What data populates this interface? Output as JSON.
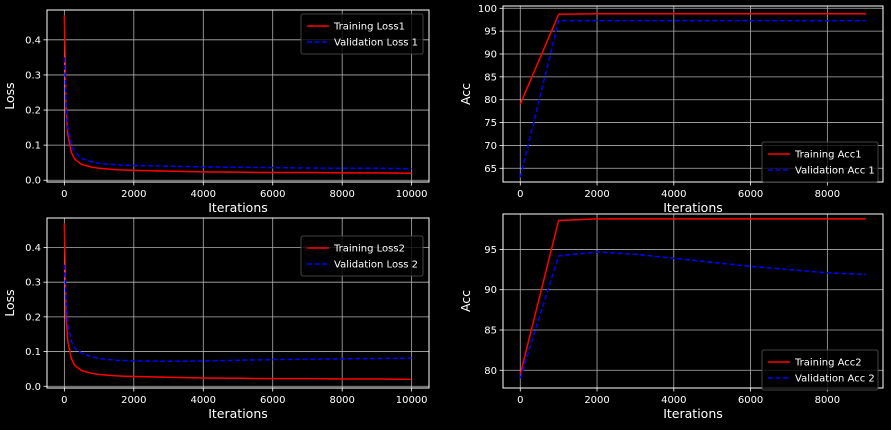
{
  "figure": {
    "background": "#000000",
    "text_color": "#ffffff",
    "grid_color": "#b0b0b0"
  },
  "chart_data": [
    {
      "type": "line",
      "xlabel": "Iterations",
      "ylabel": "Loss",
      "xlim": [
        -500,
        10500
      ],
      "ylim": [
        -0.005,
        0.485
      ],
      "xticks": [
        0,
        2000,
        4000,
        6000,
        8000,
        10000
      ],
      "yticks": [
        0.0,
        0.1,
        0.2,
        0.3,
        0.4
      ],
      "grid": true,
      "legend_position": "top-right",
      "series": [
        {
          "name": "Training Loss1",
          "color": "#ff0000",
          "style": "solid",
          "x": [
            0,
            50,
            100,
            200,
            300,
            500,
            800,
            1000,
            1500,
            2000,
            3000,
            4000,
            5000,
            6000,
            7000,
            8000,
            9000,
            10000
          ],
          "y": [
            0.47,
            0.2,
            0.13,
            0.08,
            0.06,
            0.045,
            0.037,
            0.034,
            0.03,
            0.028,
            0.026,
            0.024,
            0.023,
            0.022,
            0.022,
            0.021,
            0.021,
            0.02
          ]
        },
        {
          "name": "Validation Loss 1",
          "color": "#0000ff",
          "style": "dashed",
          "x": [
            0,
            50,
            100,
            200,
            300,
            500,
            800,
            1000,
            1500,
            2000,
            3000,
            4000,
            5000,
            6000,
            7000,
            8000,
            9000,
            10000
          ],
          "y": [
            0.35,
            0.22,
            0.15,
            0.1,
            0.08,
            0.062,
            0.052,
            0.048,
            0.044,
            0.042,
            0.04,
            0.038,
            0.037,
            0.036,
            0.035,
            0.034,
            0.034,
            0.033
          ]
        }
      ]
    },
    {
      "type": "line",
      "xlabel": "Iterations",
      "ylabel": "Acc",
      "xlim": [
        -450,
        9450
      ],
      "ylim": [
        62,
        100.5
      ],
      "xticks": [
        0,
        2000,
        4000,
        6000,
        8000
      ],
      "yticks": [
        65,
        70,
        75,
        80,
        85,
        90,
        95,
        100
      ],
      "grid": true,
      "legend_position": "bottom-right",
      "series": [
        {
          "name": "Training Acc1",
          "color": "#ff0000",
          "style": "solid",
          "x": [
            0,
            1000,
            2000,
            3000,
            4000,
            5000,
            6000,
            7000,
            8000,
            9000
          ],
          "y": [
            79,
            98.7,
            98.8,
            98.8,
            98.8,
            98.8,
            98.8,
            98.8,
            98.8,
            98.8
          ]
        },
        {
          "name": "Validation Acc 1",
          "color": "#0000ff",
          "style": "dashed",
          "x": [
            0,
            1000,
            2000,
            3000,
            4000,
            5000,
            6000,
            7000,
            8000,
            9000
          ],
          "y": [
            63,
            97.3,
            97.3,
            97.3,
            97.3,
            97.3,
            97.3,
            97.3,
            97.3,
            97.3
          ]
        }
      ]
    },
    {
      "type": "line",
      "xlabel": "Iterations",
      "ylabel": "Loss",
      "xlim": [
        -500,
        10500
      ],
      "ylim": [
        -0.005,
        0.485
      ],
      "xticks": [
        0,
        2000,
        4000,
        6000,
        8000,
        10000
      ],
      "yticks": [
        0.0,
        0.1,
        0.2,
        0.3,
        0.4
      ],
      "grid": true,
      "legend_position": "top-right",
      "series": [
        {
          "name": "Training Loss2",
          "color": "#ff0000",
          "style": "solid",
          "x": [
            0,
            50,
            100,
            200,
            300,
            500,
            800,
            1000,
            1500,
            2000,
            3000,
            4000,
            5000,
            6000,
            7000,
            8000,
            9000,
            10000
          ],
          "y": [
            0.47,
            0.2,
            0.13,
            0.08,
            0.06,
            0.045,
            0.037,
            0.034,
            0.03,
            0.028,
            0.026,
            0.024,
            0.023,
            0.022,
            0.022,
            0.021,
            0.021,
            0.02
          ]
        },
        {
          "name": "Validation Loss 2",
          "color": "#0000ff",
          "style": "dashed",
          "x": [
            0,
            50,
            100,
            200,
            300,
            500,
            800,
            1000,
            1500,
            2000,
            3000,
            4000,
            5000,
            6000,
            7000,
            8000,
            9000,
            10000
          ],
          "y": [
            0.35,
            0.25,
            0.18,
            0.13,
            0.11,
            0.095,
            0.085,
            0.08,
            0.075,
            0.073,
            0.072,
            0.073,
            0.075,
            0.077,
            0.078,
            0.079,
            0.08,
            0.081
          ]
        }
      ]
    },
    {
      "type": "line",
      "xlabel": "Iterations",
      "ylabel": "Acc",
      "xlim": [
        -450,
        9450
      ],
      "ylim": [
        77.8,
        99.4
      ],
      "xticks": [
        0,
        2000,
        4000,
        6000,
        8000
      ],
      "yticks": [
        80,
        85,
        90,
        95
      ],
      "grid": true,
      "legend_position": "bottom-right",
      "series": [
        {
          "name": "Training Acc2",
          "color": "#ff0000",
          "style": "solid",
          "x": [
            0,
            1000,
            2000,
            3000,
            4000,
            5000,
            6000,
            7000,
            8000,
            9000
          ],
          "y": [
            79.5,
            98.6,
            98.8,
            98.8,
            98.8,
            98.8,
            98.8,
            98.8,
            98.8,
            98.8
          ]
        },
        {
          "name": "Validation Acc 2",
          "color": "#0000ff",
          "style": "dashed",
          "x": [
            0,
            1000,
            2000,
            3000,
            4000,
            5000,
            6000,
            7000,
            8000,
            9000
          ],
          "y": [
            79,
            94.2,
            94.7,
            94.4,
            93.9,
            93.4,
            92.9,
            92.5,
            92.1,
            91.9
          ]
        }
      ]
    }
  ]
}
